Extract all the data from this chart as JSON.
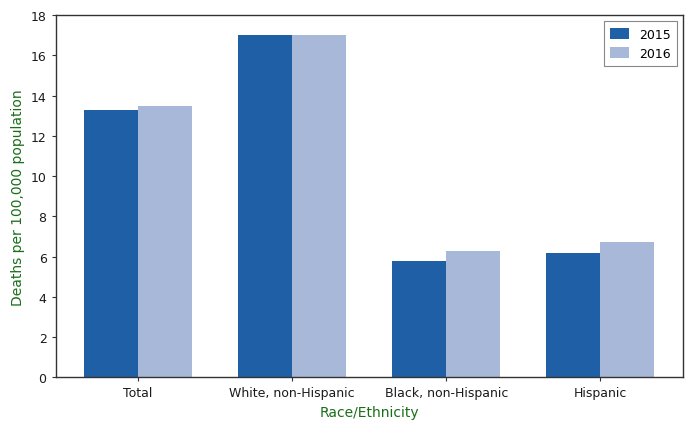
{
  "categories": [
    "Total",
    "White, non-Hispanic",
    "Black, non-Hispanic",
    "Hispanic"
  ],
  "values_2015": [
    13.3,
    17.0,
    5.8,
    6.2
  ],
  "values_2016": [
    13.5,
    17.0,
    6.3,
    6.7
  ],
  "color_2015": "#1F5FA6",
  "color_2016": "#A8B8D8",
  "ylabel": "Deaths per 100,000 population",
  "xlabel": "Race/Ethnicity",
  "ylim": [
    0,
    18
  ],
  "yticks": [
    0,
    2,
    4,
    6,
    8,
    10,
    12,
    14,
    16,
    18
  ],
  "legend_labels": [
    "2015",
    "2016"
  ],
  "bar_width": 0.35,
  "spine_color": "#333333",
  "label_color": "#1a1a1a",
  "axis_label_color": "#1a6e1a",
  "background_color": "#ffffff"
}
